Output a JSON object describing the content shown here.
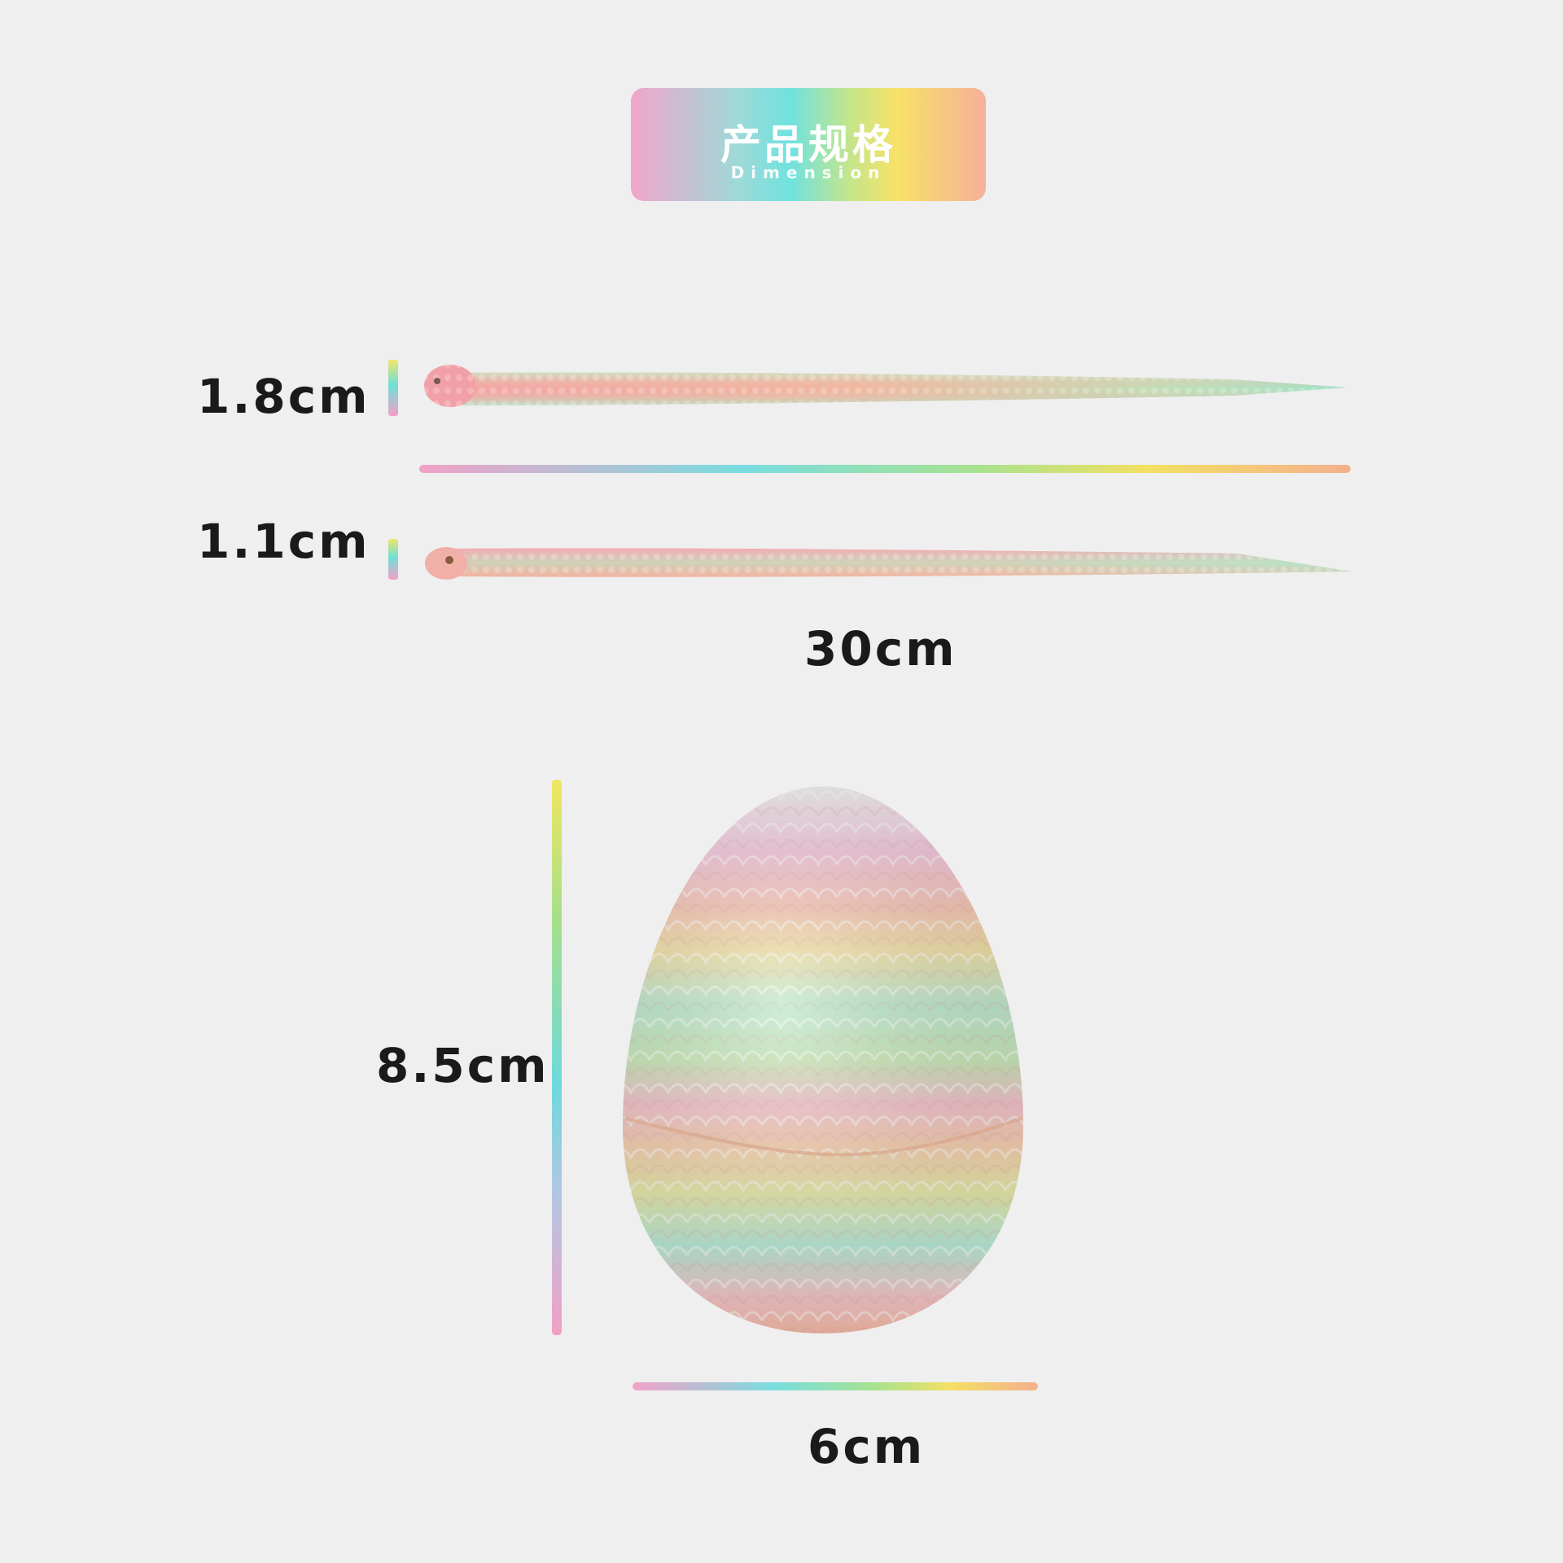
{
  "title": {
    "cn": "产品规格",
    "en": "Dimension"
  },
  "snake": {
    "large_width_label": "1.8cm",
    "small_width_label": "1.1cm",
    "length_label": "30cm"
  },
  "egg": {
    "height_label": "8.5cm",
    "width_label": "6cm"
  },
  "colors": {
    "background": "#efefef",
    "rainbow": [
      "#f2a1c8",
      "#79dde0",
      "#a7e28f",
      "#f3e064",
      "#f4b08d"
    ]
  }
}
